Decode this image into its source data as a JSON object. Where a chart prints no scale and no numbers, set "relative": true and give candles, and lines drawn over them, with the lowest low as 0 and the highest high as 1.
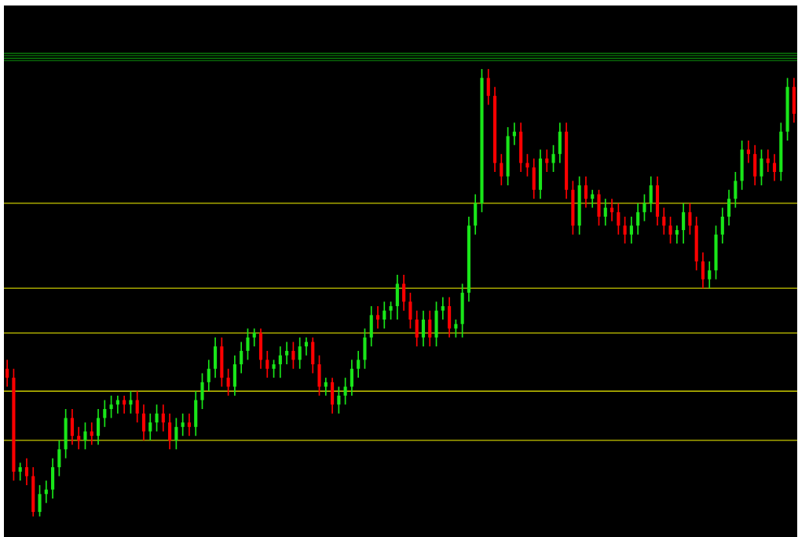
{
  "chart_data": {
    "type": "candlestick",
    "relative": true,
    "categories": [
      null,
      null,
      null,
      null,
      null,
      null,
      null,
      null,
      null,
      null,
      null,
      null,
      null,
      null,
      null,
      null,
      null,
      null,
      null,
      null,
      null,
      null,
      null,
      null,
      null,
      null,
      null,
      null,
      null,
      null,
      null,
      null,
      null,
      null,
      null,
      null,
      null,
      null,
      null,
      null,
      null,
      null,
      null,
      null,
      null,
      null,
      null,
      null,
      null,
      null,
      null,
      null,
      null,
      null,
      null,
      null,
      null,
      null,
      null,
      null,
      null,
      null,
      null,
      null,
      null,
      null,
      null,
      null,
      null,
      null,
      null,
      null,
      null,
      null,
      null,
      null,
      null,
      null,
      null,
      null,
      null,
      null,
      null,
      null,
      null,
      null,
      null,
      null,
      null,
      null,
      null,
      null,
      null,
      null,
      null,
      null,
      null,
      null,
      null,
      null,
      null,
      null,
      null,
      null,
      null,
      null,
      null,
      null,
      null,
      null,
      null,
      null,
      null,
      null,
      null,
      null,
      null,
      null,
      null,
      null,
      null,
      null
    ],
    "ohlc": [
      [
        0.33,
        0.35,
        0.29,
        0.31
      ],
      [
        0.31,
        0.33,
        0.08,
        0.1
      ],
      [
        0.1,
        0.12,
        0.08,
        0.11
      ],
      [
        0.11,
        0.13,
        0.07,
        0.09
      ],
      [
        0.09,
        0.11,
        0.0,
        0.01
      ],
      [
        0.01,
        0.07,
        0.0,
        0.05
      ],
      [
        0.05,
        0.08,
        0.03,
        0.06
      ],
      [
        0.06,
        0.13,
        0.04,
        0.11
      ],
      [
        0.11,
        0.17,
        0.09,
        0.15
      ],
      [
        0.15,
        0.24,
        0.13,
        0.22
      ],
      [
        0.22,
        0.24,
        0.16,
        0.18
      ],
      [
        0.18,
        0.2,
        0.15,
        0.17
      ],
      [
        0.17,
        0.21,
        0.15,
        0.19
      ],
      [
        0.19,
        0.21,
        0.16,
        0.18
      ],
      [
        0.18,
        0.24,
        0.16,
        0.22
      ],
      [
        0.22,
        0.26,
        0.2,
        0.24
      ],
      [
        0.24,
        0.27,
        0.22,
        0.25
      ],
      [
        0.25,
        0.27,
        0.23,
        0.26
      ],
      [
        0.26,
        0.27,
        0.23,
        0.25
      ],
      [
        0.25,
        0.28,
        0.23,
        0.26
      ],
      [
        0.26,
        0.28,
        0.21,
        0.23
      ],
      [
        0.23,
        0.25,
        0.17,
        0.19
      ],
      [
        0.19,
        0.23,
        0.17,
        0.21
      ],
      [
        0.21,
        0.25,
        0.19,
        0.23
      ],
      [
        0.23,
        0.25,
        0.19,
        0.21
      ],
      [
        0.21,
        0.23,
        0.15,
        0.17
      ],
      [
        0.17,
        0.22,
        0.15,
        0.2
      ],
      [
        0.2,
        0.23,
        0.18,
        0.21
      ],
      [
        0.21,
        0.23,
        0.18,
        0.2
      ],
      [
        0.2,
        0.28,
        0.18,
        0.26
      ],
      [
        0.26,
        0.32,
        0.24,
        0.3
      ],
      [
        0.3,
        0.35,
        0.28,
        0.33
      ],
      [
        0.33,
        0.4,
        0.31,
        0.38
      ],
      [
        0.38,
        0.4,
        0.29,
        0.31
      ],
      [
        0.31,
        0.33,
        0.27,
        0.29
      ],
      [
        0.29,
        0.36,
        0.27,
        0.34
      ],
      [
        0.34,
        0.39,
        0.32,
        0.37
      ],
      [
        0.37,
        0.42,
        0.35,
        0.4
      ],
      [
        0.4,
        0.42,
        0.38,
        0.41
      ],
      [
        0.41,
        0.42,
        0.33,
        0.35
      ],
      [
        0.35,
        0.37,
        0.31,
        0.33
      ],
      [
        0.33,
        0.35,
        0.31,
        0.34
      ],
      [
        0.34,
        0.38,
        0.31,
        0.36
      ],
      [
        0.36,
        0.39,
        0.34,
        0.37
      ],
      [
        0.37,
        0.39,
        0.33,
        0.35
      ],
      [
        0.35,
        0.4,
        0.33,
        0.38
      ],
      [
        0.38,
        0.4,
        0.36,
        0.39
      ],
      [
        0.39,
        0.4,
        0.32,
        0.34
      ],
      [
        0.34,
        0.36,
        0.27,
        0.29
      ],
      [
        0.29,
        0.31,
        0.27,
        0.3
      ],
      [
        0.3,
        0.31,
        0.23,
        0.25
      ],
      [
        0.25,
        0.29,
        0.23,
        0.27
      ],
      [
        0.27,
        0.31,
        0.25,
        0.29
      ],
      [
        0.29,
        0.35,
        0.27,
        0.33
      ],
      [
        0.33,
        0.37,
        0.31,
        0.35
      ],
      [
        0.35,
        0.42,
        0.33,
        0.4
      ],
      [
        0.4,
        0.47,
        0.38,
        0.45
      ],
      [
        0.45,
        0.47,
        0.42,
        0.44
      ],
      [
        0.44,
        0.48,
        0.42,
        0.46
      ],
      [
        0.46,
        0.48,
        0.44,
        0.47
      ],
      [
        0.47,
        0.54,
        0.44,
        0.52
      ],
      [
        0.52,
        0.54,
        0.46,
        0.48
      ],
      [
        0.48,
        0.5,
        0.42,
        0.44
      ],
      [
        0.44,
        0.46,
        0.38,
        0.4
      ],
      [
        0.4,
        0.46,
        0.38,
        0.44
      ],
      [
        0.44,
        0.46,
        0.38,
        0.4
      ],
      [
        0.4,
        0.48,
        0.38,
        0.46
      ],
      [
        0.46,
        0.49,
        0.44,
        0.47
      ],
      [
        0.47,
        0.49,
        0.4,
        0.42
      ],
      [
        0.42,
        0.44,
        0.4,
        0.43
      ],
      [
        0.43,
        0.52,
        0.4,
        0.5
      ],
      [
        0.5,
        0.67,
        0.48,
        0.65
      ],
      [
        0.65,
        0.72,
        0.63,
        0.7
      ],
      [
        0.7,
        1.0,
        0.68,
        0.98
      ],
      [
        0.98,
        1.0,
        0.92,
        0.94
      ],
      [
        0.94,
        0.96,
        0.77,
        0.79
      ],
      [
        0.79,
        0.81,
        0.74,
        0.76
      ],
      [
        0.76,
        0.87,
        0.74,
        0.85
      ],
      [
        0.85,
        0.88,
        0.83,
        0.86
      ],
      [
        0.86,
        0.88,
        0.77,
        0.79
      ],
      [
        0.79,
        0.81,
        0.76,
        0.78
      ],
      [
        0.78,
        0.8,
        0.71,
        0.73
      ],
      [
        0.73,
        0.82,
        0.71,
        0.8
      ],
      [
        0.8,
        0.82,
        0.77,
        0.79
      ],
      [
        0.79,
        0.83,
        0.77,
        0.81
      ],
      [
        0.81,
        0.88,
        0.79,
        0.86
      ],
      [
        0.86,
        0.88,
        0.71,
        0.73
      ],
      [
        0.73,
        0.75,
        0.63,
        0.65
      ],
      [
        0.65,
        0.76,
        0.63,
        0.74
      ],
      [
        0.74,
        0.76,
        0.69,
        0.71
      ],
      [
        0.71,
        0.73,
        0.69,
        0.72
      ],
      [
        0.72,
        0.73,
        0.65,
        0.67
      ],
      [
        0.67,
        0.71,
        0.65,
        0.69
      ],
      [
        0.69,
        0.71,
        0.66,
        0.68
      ],
      [
        0.68,
        0.7,
        0.63,
        0.65
      ],
      [
        0.65,
        0.67,
        0.61,
        0.63
      ],
      [
        0.63,
        0.67,
        0.61,
        0.65
      ],
      [
        0.65,
        0.7,
        0.63,
        0.68
      ],
      [
        0.68,
        0.72,
        0.66,
        0.7
      ],
      [
        0.7,
        0.76,
        0.68,
        0.74
      ],
      [
        0.74,
        0.76,
        0.65,
        0.67
      ],
      [
        0.67,
        0.69,
        0.63,
        0.65
      ],
      [
        0.65,
        0.67,
        0.61,
        0.63
      ],
      [
        0.63,
        0.65,
        0.61,
        0.64
      ],
      [
        0.64,
        0.7,
        0.61,
        0.68
      ],
      [
        0.68,
        0.7,
        0.63,
        0.65
      ],
      [
        0.65,
        0.67,
        0.55,
        0.57
      ],
      [
        0.57,
        0.59,
        0.51,
        0.53
      ],
      [
        0.53,
        0.57,
        0.51,
        0.55
      ],
      [
        0.55,
        0.65,
        0.53,
        0.63
      ],
      [
        0.63,
        0.69,
        0.61,
        0.67
      ],
      [
        0.67,
        0.73,
        0.65,
        0.71
      ],
      [
        0.71,
        0.77,
        0.69,
        0.75
      ],
      [
        0.75,
        0.84,
        0.73,
        0.82
      ],
      [
        0.82,
        0.84,
        0.79,
        0.81
      ],
      [
        0.81,
        0.83,
        0.74,
        0.76
      ],
      [
        0.76,
        0.82,
        0.74,
        0.8
      ],
      [
        0.8,
        0.82,
        0.77,
        0.79
      ],
      [
        0.79,
        0.81,
        0.75,
        0.77
      ],
      [
        0.77,
        0.88,
        0.75,
        0.86
      ],
      [
        0.86,
        0.98,
        0.84,
        0.96
      ],
      [
        0.96,
        0.98,
        0.88,
        0.9
      ]
    ],
    "colors": [
      "#ff0000",
      "#ff0000",
      "#19e619",
      "#ff0000",
      "#ff0000",
      "#19e619",
      "#19e619",
      "#19e619",
      "#19e619",
      "#19e619",
      "#ff0000",
      "#ff0000",
      "#19e619",
      "#ff0000",
      "#19e619",
      "#19e619",
      "#19e619",
      "#19e619",
      "#ff0000",
      "#19e619",
      "#ff0000",
      "#ff0000",
      "#19e619",
      "#19e619",
      "#ff0000",
      "#ff0000",
      "#19e619",
      "#19e619",
      "#ff0000",
      "#19e619",
      "#19e619",
      "#19e619",
      "#19e619",
      "#ff0000",
      "#ff0000",
      "#19e619",
      "#19e619",
      "#19e619",
      "#19e619",
      "#ff0000",
      "#ff0000",
      "#19e619",
      "#19e619",
      "#19e619",
      "#ff0000",
      "#19e619",
      "#19e619",
      "#ff0000",
      "#ff0000",
      "#19e619",
      "#ff0000",
      "#19e619",
      "#19e619",
      "#19e619",
      "#19e619",
      "#19e619",
      "#19e619",
      "#ff0000",
      "#19e619",
      "#19e619",
      "#19e619",
      "#ff0000",
      "#ff0000",
      "#ff0000",
      "#19e619",
      "#ff0000",
      "#19e619",
      "#19e619",
      "#ff0000",
      "#19e619",
      "#19e619",
      "#19e619",
      "#19e619",
      "#19e619",
      "#ff0000",
      "#ff0000",
      "#ff0000",
      "#19e619",
      "#19e619",
      "#ff0000",
      "#ff0000",
      "#ff0000",
      "#19e619",
      "#ff0000",
      "#19e619",
      "#19e619",
      "#ff0000",
      "#ff0000",
      "#19e619",
      "#ff0000",
      "#19e619",
      "#ff0000",
      "#19e619",
      "#ff0000",
      "#ff0000",
      "#ff0000",
      "#19e619",
      "#19e619",
      "#19e619",
      "#19e619",
      "#ff0000",
      "#ff0000",
      "#ff0000",
      "#19e619",
      "#19e619",
      "#ff0000",
      "#ff0000",
      "#ff0000",
      "#19e619",
      "#19e619",
      "#19e619",
      "#19e619",
      "#19e619",
      "#19e619",
      "#ff0000",
      "#ff0000",
      "#19e619",
      "#ff0000",
      "#ff0000",
      "#19e619",
      "#19e619",
      "#ff0000"
    ],
    "ref_lines": [
      {
        "axis": "y",
        "value": 1.035,
        "color": "#0a7a0a"
      },
      {
        "axis": "y",
        "value": 1.03,
        "color": "#0a7a0a"
      },
      {
        "axis": "y",
        "value": 1.024,
        "color": "#0a7a0a"
      },
      {
        "axis": "y",
        "value": 1.019,
        "color": "#0a7a0a"
      },
      {
        "axis": "y",
        "value": 0.7,
        "color": "#c8c800"
      },
      {
        "axis": "y",
        "value": 0.51,
        "color": "#c8c800"
      },
      {
        "axis": "y",
        "value": 0.41,
        "color": "#c8c800"
      },
      {
        "axis": "y",
        "value": 0.28,
        "color": "#c8c800"
      },
      {
        "axis": "y",
        "value": 0.17,
        "color": "#c8c800"
      }
    ],
    "grid": false,
    "legend": false
  }
}
